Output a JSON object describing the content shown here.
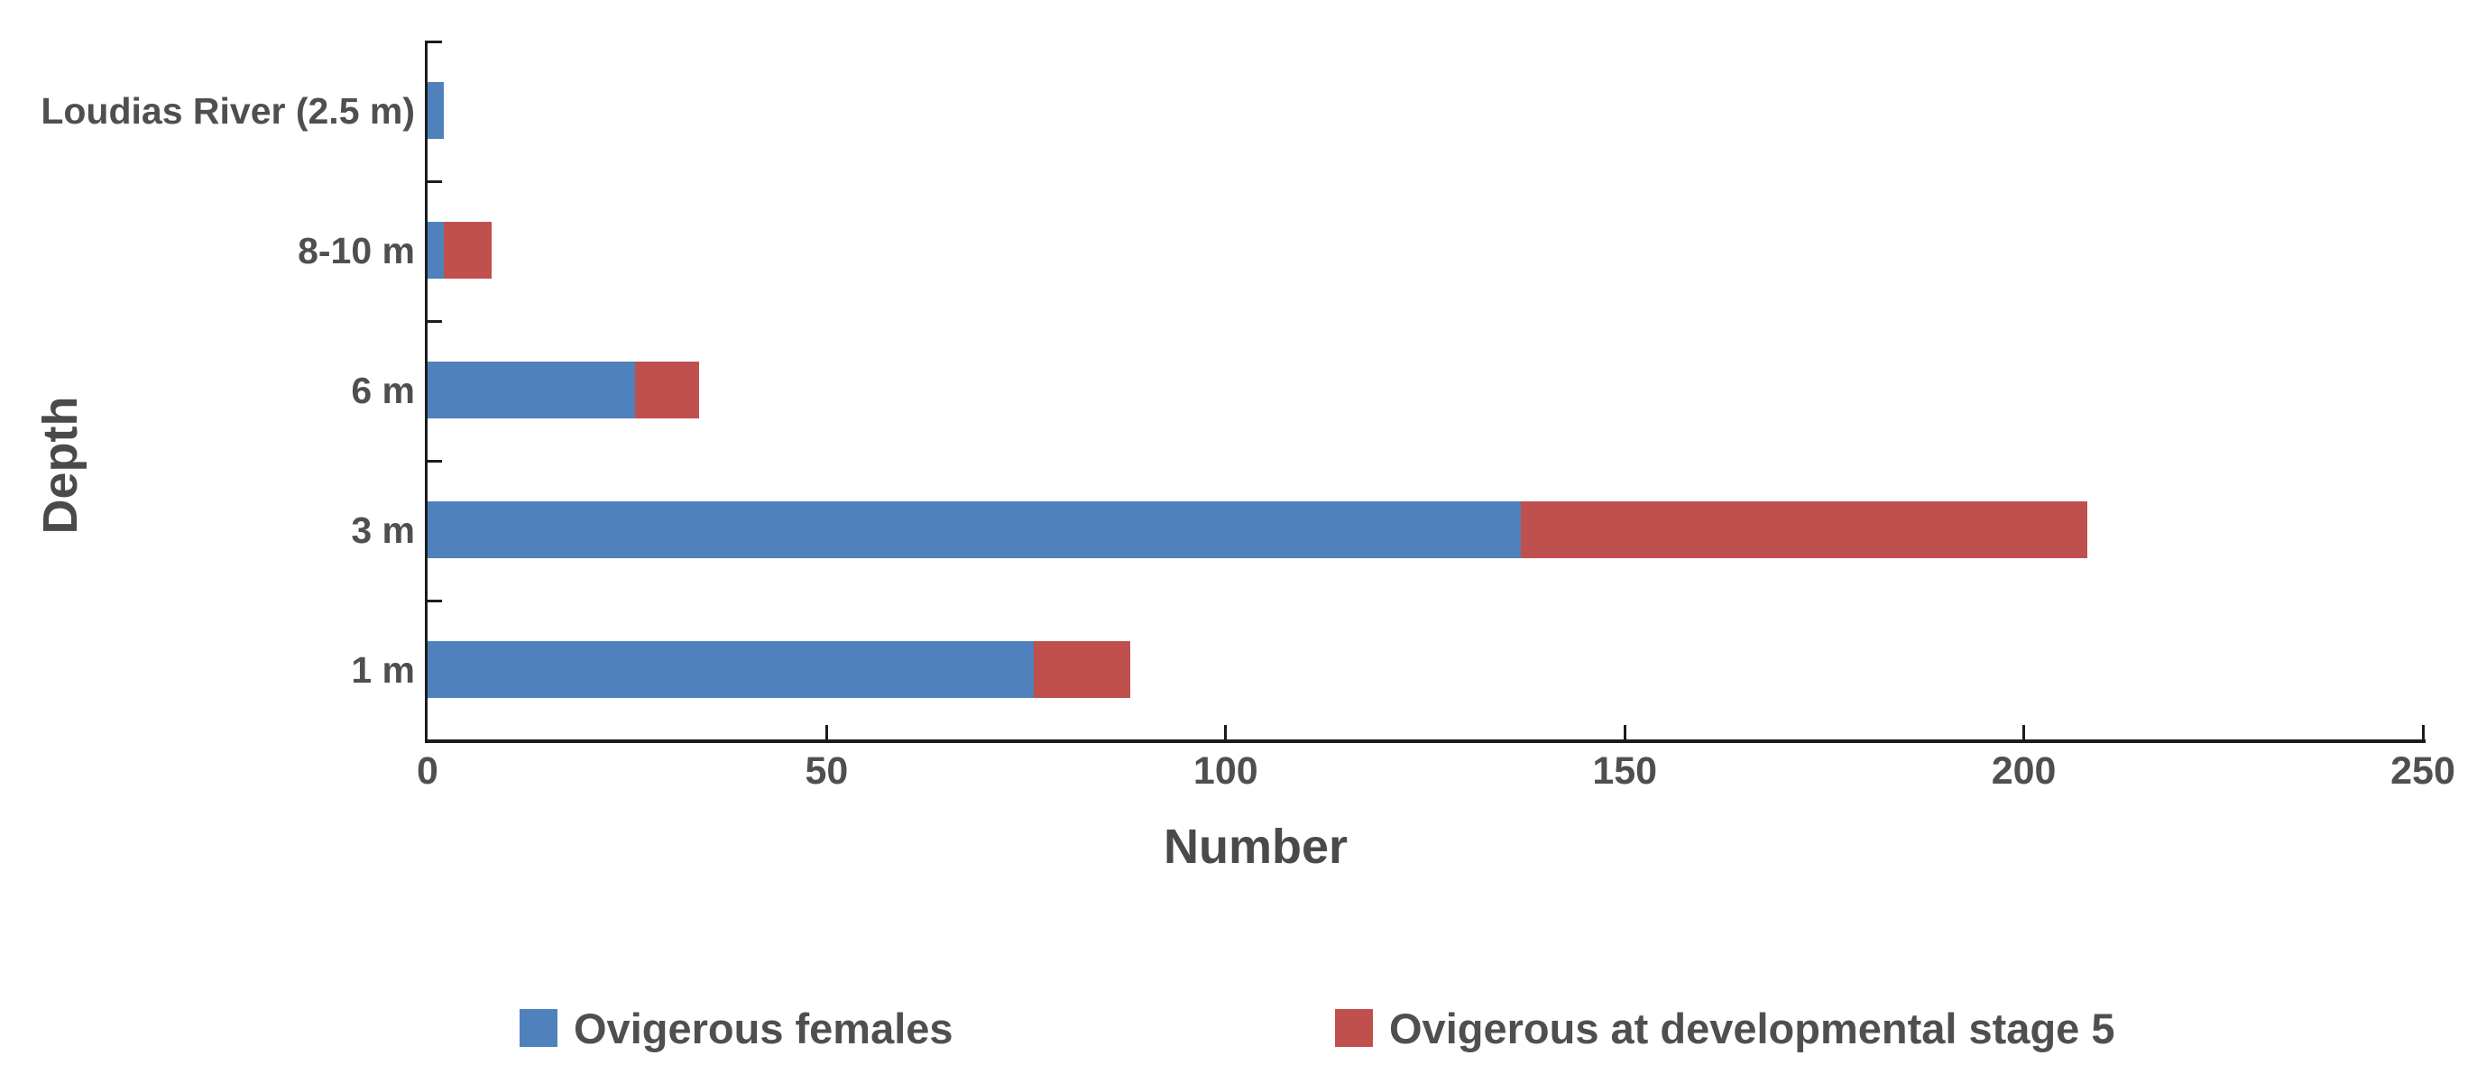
{
  "chart_data": {
    "type": "bar",
    "orientation": "horizontal",
    "stacked": true,
    "title": "",
    "xlabel": "Number",
    "ylabel": "Depth",
    "categories": [
      "Loudias River (2.5 m)",
      "8-10 m",
      "6 m",
      "3 m",
      "1 m"
    ],
    "series": [
      {
        "name": "Ovigerous females",
        "color": "#4F81BD",
        "values": [
          2,
          2,
          26,
          137,
          76
        ]
      },
      {
        "name": "Ovigerous at developmental stage 5",
        "color": "#C0504D",
        "values": [
          0,
          6,
          8,
          71,
          12
        ]
      }
    ],
    "stack_totals": [
      2,
      8,
      34,
      208,
      88
    ],
    "xlim": [
      0,
      250
    ],
    "x_ticks": [
      0,
      50,
      100,
      150,
      200,
      250
    ],
    "grid": false,
    "legend_position": "bottom"
  },
  "colors": {
    "axis": "#1c1c1c",
    "tick": "#1c1c1c",
    "label_text": "#4f4f4f",
    "title_text": "#4a4a4a",
    "background": "#ffffff"
  }
}
